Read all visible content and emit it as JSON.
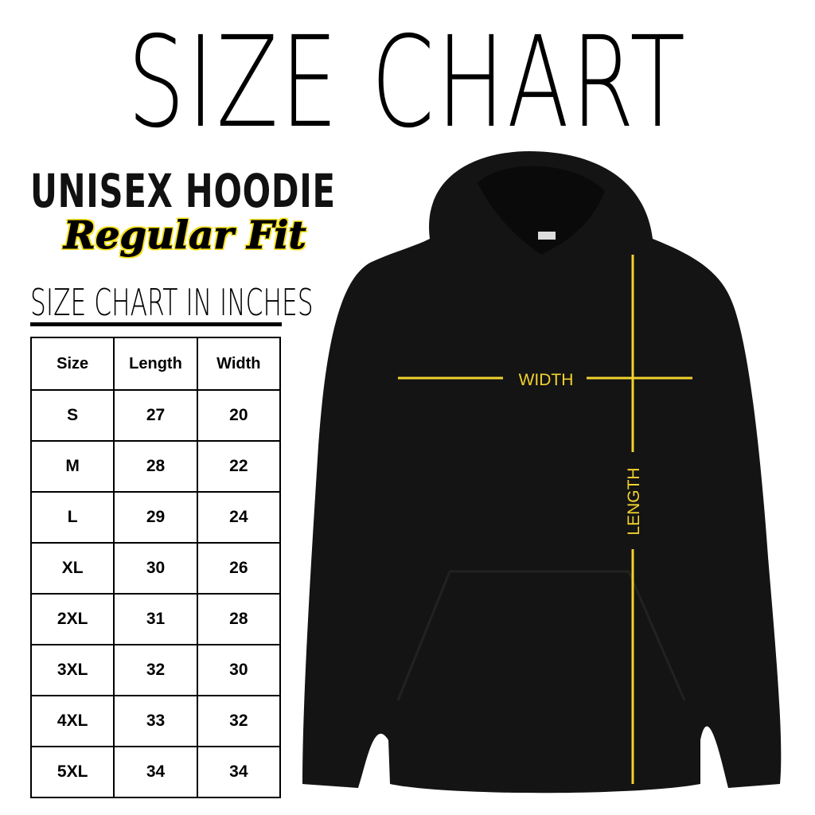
{
  "title": "SIZE CHART",
  "product": "UNISEX HOODIE",
  "fit": "Regular Fit",
  "subtitle": "SIZE CHART IN INCHES",
  "table": {
    "headers": [
      "Size",
      "Length",
      "Width"
    ],
    "rows": [
      [
        "S",
        "27",
        "20"
      ],
      [
        "M",
        "28",
        "22"
      ],
      [
        "L",
        "29",
        "24"
      ],
      [
        "XL",
        "30",
        "26"
      ],
      [
        "2XL",
        "31",
        "28"
      ],
      [
        "3XL",
        "32",
        "30"
      ],
      [
        "4XL",
        "33",
        "32"
      ],
      [
        "5XL",
        "34",
        "34"
      ]
    ]
  },
  "diagram": {
    "width_label": "WIDTH",
    "length_label": "LENGTH",
    "line_color": "#f2d22e",
    "garment_color": "#141414"
  }
}
